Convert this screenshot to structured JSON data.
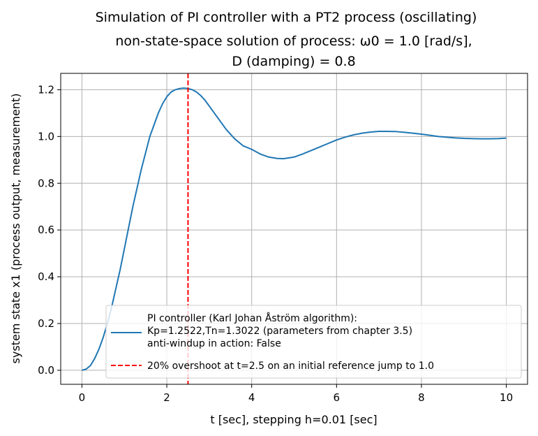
{
  "chart_data": {
    "type": "line",
    "title_lines": [
      "Simulation of PI controller with a PT2 process (oscillating)",
      "non-state-space solution of process: ω0 = 1.0 [rad/s],",
      "D (damping) = 0.8"
    ],
    "xlabel": "t [sec], stepping h=0.01 [sec]",
    "ylabel": "system state x1 (process output, measurement)",
    "xlim": [
      -0.5,
      10.5
    ],
    "ylim": [
      -0.06,
      1.27
    ],
    "xticks": [
      0,
      2,
      4,
      6,
      8,
      10
    ],
    "xtick_labels": [
      "0",
      "2",
      "4",
      "6",
      "8",
      "10"
    ],
    "yticks": [
      0.0,
      0.2,
      0.4,
      0.6,
      0.8,
      1.0,
      1.2
    ],
    "ytick_labels": [
      "0.0",
      "0.2",
      "0.4",
      "0.6",
      "0.8",
      "1.0",
      "1.2"
    ],
    "grid": true,
    "legend_position": "lower-right",
    "series": [
      {
        "name": "PI controller (Karl Johan Åström algorithm):\nKp=1.2522,Tn=1.3022 (parameters from chapter 3.5)\nanti-windup in action: False",
        "color": "#1f77b4",
        "style": "solid",
        "x": [
          0,
          0.1,
          0.2,
          0.3,
          0.4,
          0.5,
          0.6,
          0.7,
          0.8,
          0.9,
          1.0,
          1.1,
          1.2,
          1.3,
          1.4,
          1.5,
          1.6,
          1.7,
          1.8,
          1.9,
          2.0,
          2.1,
          2.2,
          2.3,
          2.4,
          2.5,
          2.6,
          2.7,
          2.8,
          2.9,
          3.0,
          3.2,
          3.4,
          3.6,
          3.8,
          4.0,
          4.2,
          4.4,
          4.6,
          4.75,
          5.0,
          5.2,
          5.4,
          5.6,
          5.8,
          6.0,
          6.2,
          6.4,
          6.6,
          6.8,
          7.0,
          7.15,
          7.4,
          7.6,
          7.8,
          8.0,
          8.2,
          8.4,
          8.6,
          8.8,
          9.0,
          9.2,
          9.4,
          9.6,
          9.8,
          10.0
        ],
        "values": [
          0.0,
          0.005,
          0.02,
          0.05,
          0.09,
          0.14,
          0.2,
          0.27,
          0.35,
          0.43,
          0.52,
          0.61,
          0.7,
          0.78,
          0.86,
          0.93,
          1.0,
          1.05,
          1.1,
          1.14,
          1.17,
          1.19,
          1.2,
          1.205,
          1.207,
          1.205,
          1.2,
          1.19,
          1.175,
          1.155,
          1.13,
          1.08,
          1.03,
          0.99,
          0.96,
          0.945,
          0.925,
          0.912,
          0.906,
          0.905,
          0.912,
          0.925,
          0.94,
          0.955,
          0.97,
          0.985,
          0.997,
          1.007,
          1.014,
          1.019,
          1.022,
          1.022,
          1.021,
          1.018,
          1.014,
          1.01,
          1.005,
          1.0,
          0.997,
          0.994,
          0.992,
          0.991,
          0.99,
          0.99,
          0.991,
          0.993
        ]
      },
      {
        "name": "20% overshoot at t=2.5 on an initial reference jump to 1.0",
        "color": "#ff0000",
        "style": "dashed",
        "vline_x": 2.5
      }
    ]
  }
}
